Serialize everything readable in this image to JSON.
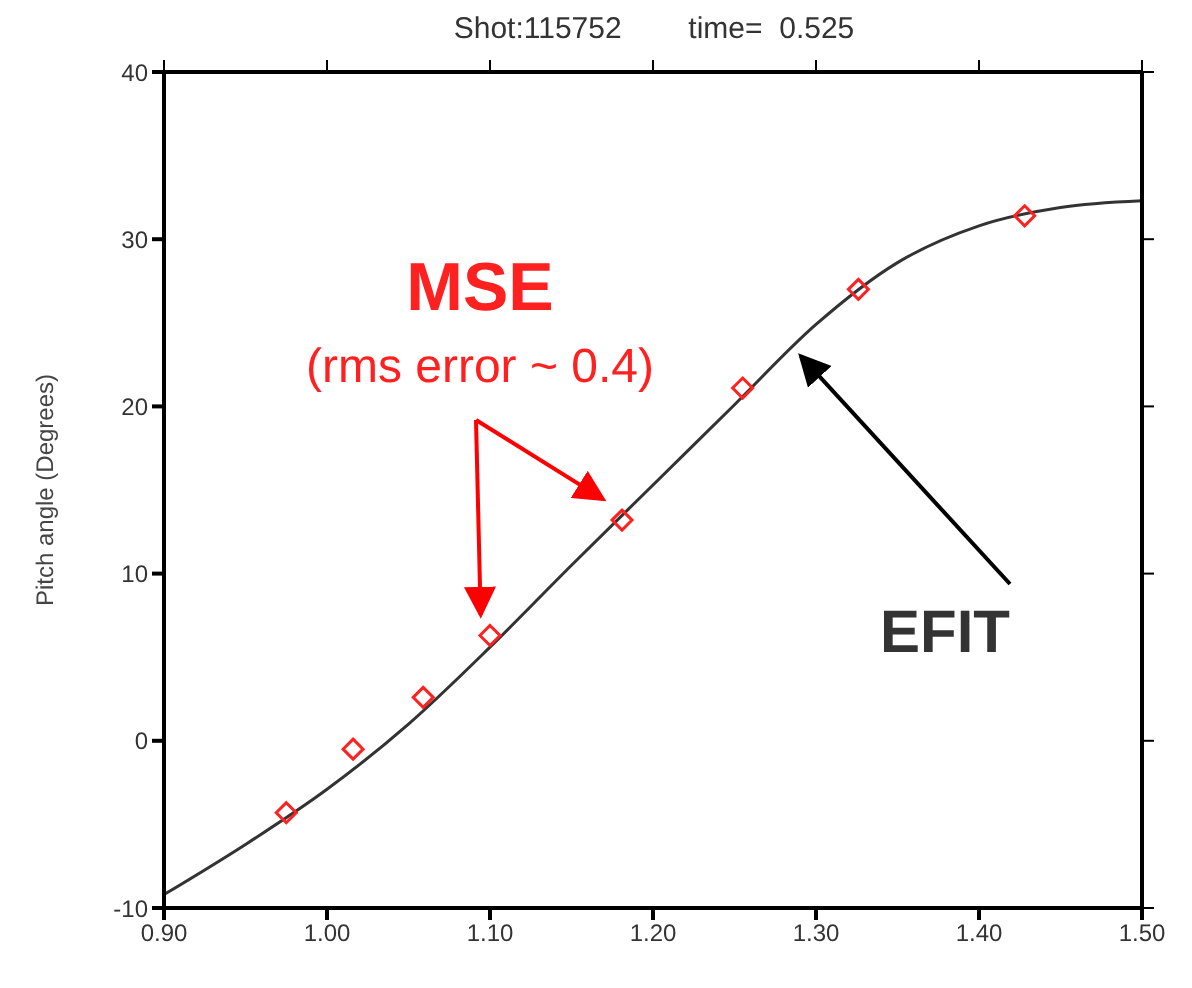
{
  "chart_data": {
    "type": "scatter",
    "title": "Shot:115752        time=  0.525",
    "ylabel": "Pitch angle (Degrees)",
    "xlim": [
      0.9,
      1.5
    ],
    "xticks": [
      {
        "value": 0.9,
        "label": "0.90"
      },
      {
        "value": 1.0,
        "label": "1.00"
      },
      {
        "value": 1.1,
        "label": "1.10"
      },
      {
        "value": 1.2,
        "label": "1.20"
      },
      {
        "value": 1.3,
        "label": "1.30"
      },
      {
        "value": 1.4,
        "label": "1.40"
      },
      {
        "value": 1.5,
        "label": "1.50"
      }
    ],
    "ylim": [
      -10,
      40
    ],
    "yticks": [
      -10,
      0,
      10,
      20,
      30,
      40
    ],
    "legend": false,
    "series": [
      {
        "name": "MSE",
        "type": "scatter",
        "marker": "diamond",
        "color": "#ff2020",
        "x": [
          0.975,
          1.016,
          1.059,
          1.1,
          1.181,
          1.255,
          1.326,
          1.428
        ],
        "values": [
          -4.3,
          -0.5,
          2.6,
          6.3,
          13.2,
          21.1,
          27.0,
          31.4
        ]
      },
      {
        "name": "EFIT",
        "type": "line",
        "marker": "none",
        "line_style": "solid",
        "color": "#333333",
        "x": [
          0.9,
          0.95,
          1.0,
          1.05,
          1.1,
          1.15,
          1.2,
          1.25,
          1.3,
          1.35,
          1.4,
          1.45,
          1.5
        ],
        "values": [
          -9.2,
          -6.2,
          -2.9,
          1.0,
          5.6,
          10.5,
          15.3,
          20.1,
          24.9,
          28.6,
          30.8,
          31.9,
          32.3
        ]
      }
    ],
    "annotations": [
      "(rms error ~ 0.4)"
    ]
  }
}
